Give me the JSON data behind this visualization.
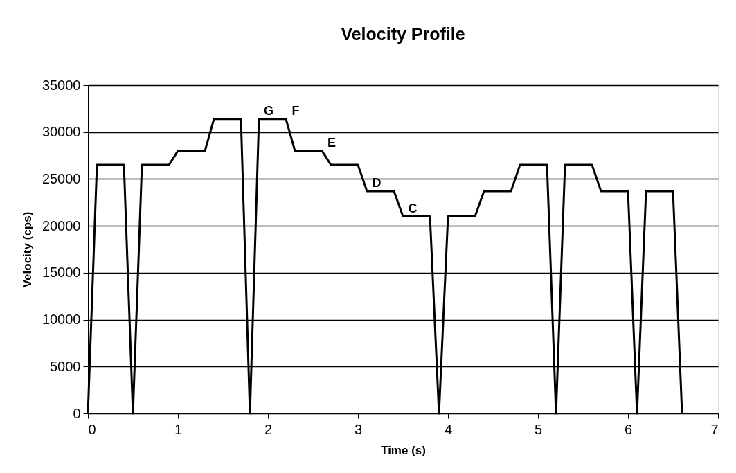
{
  "chart_data": {
    "type": "line",
    "title": "Velocity Profile",
    "xlabel": "Time (s)",
    "ylabel": "Velocity (cps)",
    "x": [
      0,
      0.1,
      0.4,
      0.5,
      0.6,
      0.9,
      1.0,
      1.3,
      1.4,
      1.7,
      1.8,
      1.9,
      2.2,
      2.3,
      2.6,
      2.7,
      3.0,
      3.1,
      3.4,
      3.5,
      3.8,
      3.9,
      4.0,
      4.3,
      4.4,
      4.7,
      4.8,
      5.1,
      5.2,
      5.3,
      5.6,
      5.7,
      6.0,
      6.1,
      6.2,
      6.5,
      6.6
    ],
    "series": [
      {
        "color": "#000000",
        "values": [
          0,
          26500,
          26500,
          0,
          26500,
          26500,
          28000,
          28000,
          31400,
          31400,
          0,
          31400,
          31400,
          28000,
          28000,
          26500,
          26500,
          23700,
          23700,
          21000,
          21000,
          0,
          21000,
          21000,
          23700,
          23700,
          26500,
          26500,
          0,
          26500,
          26500,
          23700,
          23700,
          0,
          23700,
          23700,
          0
        ]
      }
    ],
    "xlim": [
      0,
      7
    ],
    "xticks": [
      0,
      1,
      2,
      3,
      4,
      5,
      6,
      7
    ],
    "ylim": [
      0,
      35000
    ],
    "yticks": [
      0,
      5000,
      10000,
      15000,
      20000,
      25000,
      30000,
      35000
    ],
    "grid": "y",
    "line_style": "solid",
    "annotations": [
      {
        "text": "G",
        "x": 1.9,
        "y": 31400
      },
      {
        "text": "F",
        "x": 2.2,
        "y": 31400
      },
      {
        "text": "E",
        "x": 2.6,
        "y": 28000
      },
      {
        "text": "D",
        "x": 3.1,
        "y": 23700
      },
      {
        "text": "C",
        "x": 3.5,
        "y": 21000
      }
    ]
  }
}
